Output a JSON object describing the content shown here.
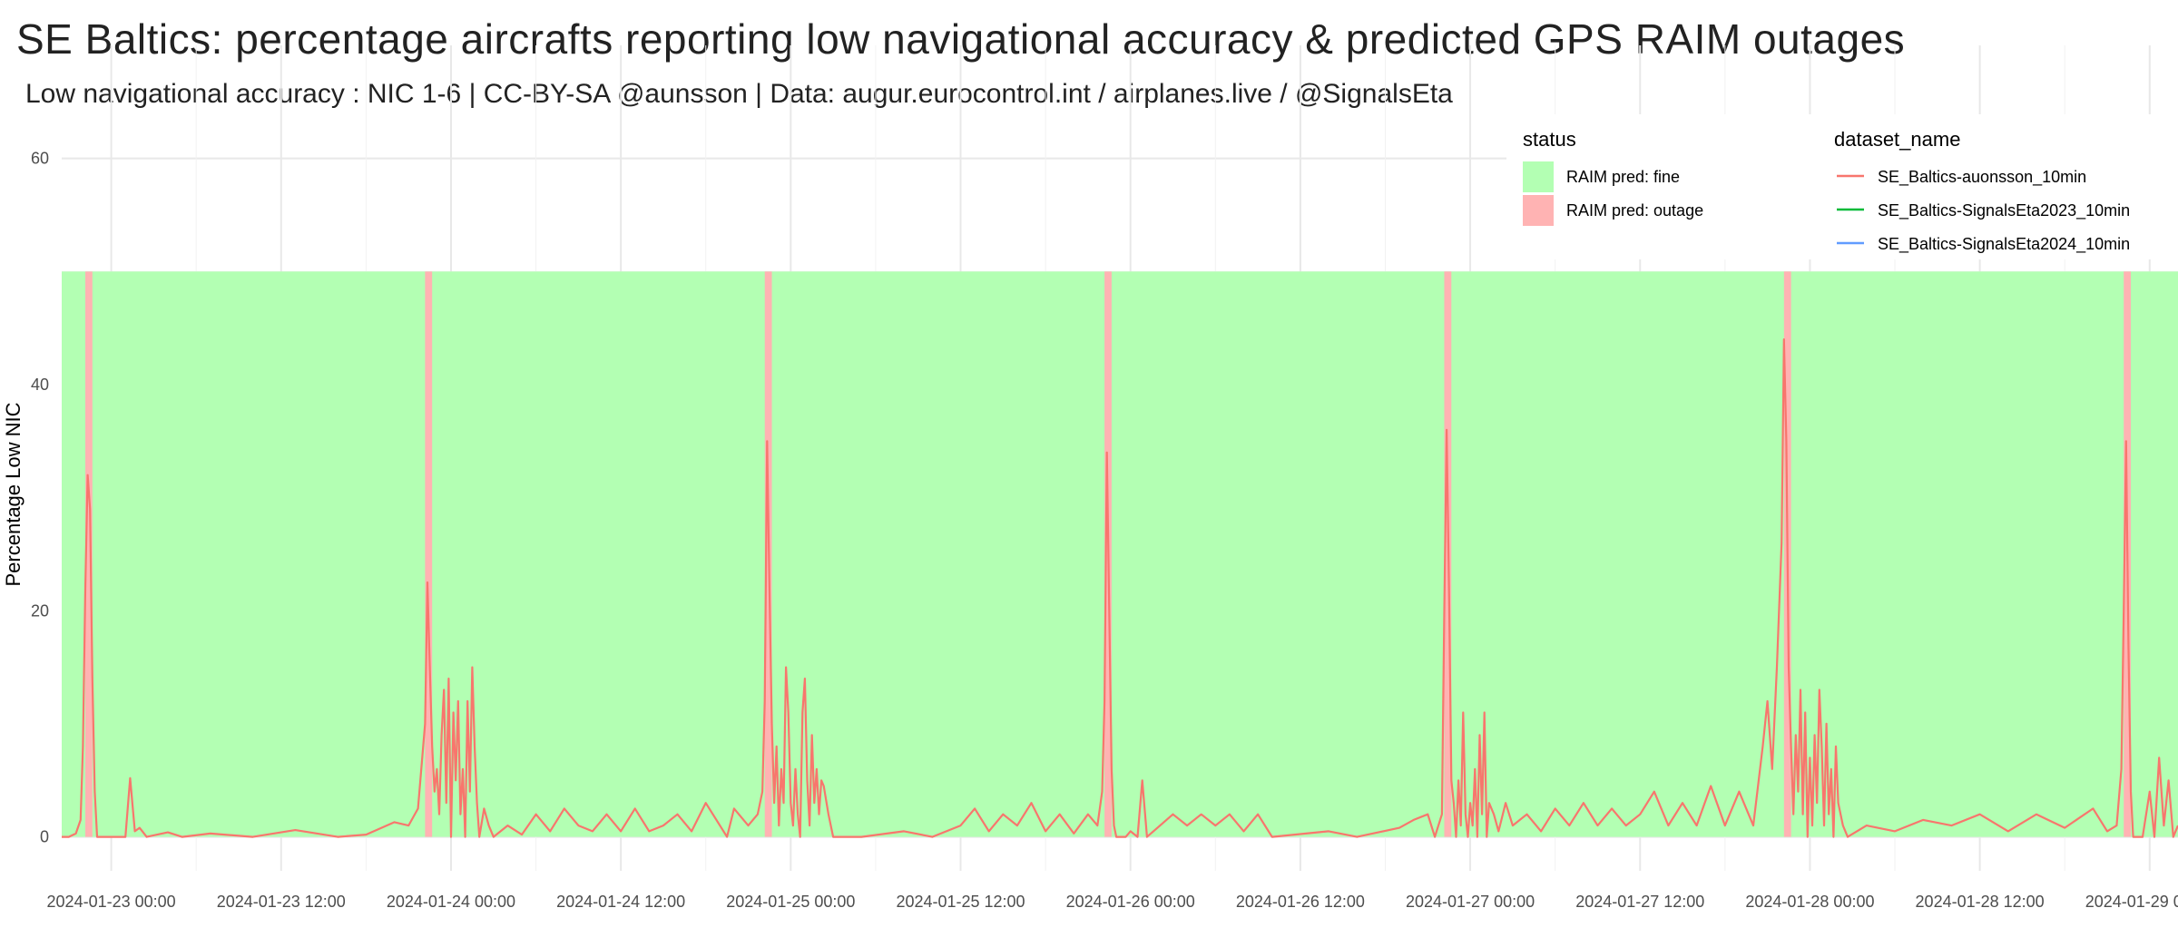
{
  "chart_data": {
    "type": "line",
    "title": "SE Baltics: percentage aircrafts reporting low navigational accuracy & predicted GPS RAIM outages",
    "subtitle": "Low navigational accuracy : NIC 1-6 | CC-BY-SA @aunsson | Data: augur.eurocontrol.int / airplanes.live / @SignalsEta",
    "xlabel": "",
    "ylabel": "Percentage Low NIC",
    "x_range": [
      "2024-01-22 20:30",
      "2024-01-29 02:00"
    ],
    "ylim": [
      -3,
      70
    ],
    "y_ticks": [
      0,
      20,
      40,
      60
    ],
    "x_ticks": [
      "2024-01-23 00:00",
      "2024-01-23 12:00",
      "2024-01-24 00:00",
      "2024-01-24 12:00",
      "2024-01-25 00:00",
      "2024-01-25 12:00",
      "2024-01-26 00:00",
      "2024-01-26 12:00",
      "2024-01-27 00:00",
      "2024-01-27 12:00",
      "2024-01-28 00:00",
      "2024-01-28 12:00",
      "2024-01-29 00:00"
    ],
    "grid": true,
    "status_band": {
      "ymin": 0,
      "ymax": 50,
      "fine_color": "#b3ffb3",
      "outage_color": "#ffb3b3"
    },
    "status_outages": [
      [
        "2024-01-22 22:10",
        "2024-01-22 22:40"
      ],
      [
        "2024-01-23 22:10",
        "2024-01-23 22:40"
      ],
      [
        "2024-01-24 22:10",
        "2024-01-24 22:40"
      ],
      [
        "2024-01-25 22:10",
        "2024-01-25 22:40"
      ],
      [
        "2024-01-26 22:10",
        "2024-01-26 22:40"
      ],
      [
        "2024-01-27 22:10",
        "2024-01-27 22:40"
      ],
      [
        "2024-01-28 22:10",
        "2024-01-28 22:40"
      ]
    ],
    "legend_status": {
      "title": "status",
      "items": [
        {
          "label": "RAIM pred: fine",
          "color": "#b3ffb3"
        },
        {
          "label": "RAIM pred: outage",
          "color": "#ffb3b3"
        }
      ]
    },
    "legend_dataset": {
      "title": "dataset_name",
      "items": [
        {
          "label": "SE_Baltics-auonsson_10min",
          "color": "#f8766d"
        },
        {
          "label": "SE_Baltics-SignalsEta2023_10min",
          "color": "#00ba38"
        },
        {
          "label": "SE_Baltics-SignalsEta2024_10min",
          "color": "#619cff"
        }
      ]
    },
    "legend_position": "top-right",
    "series": [
      {
        "name": "SE_Baltics-auonsson_10min",
        "color": "#f8766d",
        "points": [
          [
            "2024-01-22 20:30",
            0
          ],
          [
            "2024-01-22 21:00",
            0
          ],
          [
            "2024-01-22 21:30",
            0.3
          ],
          [
            "2024-01-22 21:50",
            1.5
          ],
          [
            "2024-01-22 22:00",
            8
          ],
          [
            "2024-01-22 22:10",
            22
          ],
          [
            "2024-01-22 22:20",
            32
          ],
          [
            "2024-01-22 22:30",
            29
          ],
          [
            "2024-01-22 22:40",
            14
          ],
          [
            "2024-01-22 22:50",
            4
          ],
          [
            "2024-01-22 23:00",
            0
          ],
          [
            "2024-01-23 00:00",
            0
          ],
          [
            "2024-01-23 01:00",
            0
          ],
          [
            "2024-01-23 01:20",
            5.2
          ],
          [
            "2024-01-23 01:40",
            0.5
          ],
          [
            "2024-01-23 02:00",
            0.8
          ],
          [
            "2024-01-23 02:30",
            0
          ],
          [
            "2024-01-23 04:00",
            0.4
          ],
          [
            "2024-01-23 05:00",
            0
          ],
          [
            "2024-01-23 07:00",
            0.3
          ],
          [
            "2024-01-23 10:00",
            0
          ],
          [
            "2024-01-23 13:00",
            0.6
          ],
          [
            "2024-01-23 16:00",
            0
          ],
          [
            "2024-01-23 18:00",
            0.2
          ],
          [
            "2024-01-23 20:00",
            1.3
          ],
          [
            "2024-01-23 21:00",
            1
          ],
          [
            "2024-01-23 21:40",
            2.5
          ],
          [
            "2024-01-23 22:10",
            10
          ],
          [
            "2024-01-23 22:20",
            22.5
          ],
          [
            "2024-01-23 22:30",
            15
          ],
          [
            "2024-01-23 22:40",
            8
          ],
          [
            "2024-01-23 22:50",
            4
          ],
          [
            "2024-01-23 23:00",
            6
          ],
          [
            "2024-01-23 23:10",
            2
          ],
          [
            "2024-01-23 23:20",
            9
          ],
          [
            "2024-01-23 23:30",
            13
          ],
          [
            "2024-01-23 23:40",
            3
          ],
          [
            "2024-01-23 23:50",
            14
          ],
          [
            "2024-01-24 00:00",
            0
          ],
          [
            "2024-01-24 00:10",
            11
          ],
          [
            "2024-01-24 00:20",
            5
          ],
          [
            "2024-01-24 00:30",
            12
          ],
          [
            "2024-01-24 00:40",
            2
          ],
          [
            "2024-01-24 00:50",
            6
          ],
          [
            "2024-01-24 01:00",
            0
          ],
          [
            "2024-01-24 01:10",
            12
          ],
          [
            "2024-01-24 01:20",
            4
          ],
          [
            "2024-01-24 01:30",
            15
          ],
          [
            "2024-01-24 01:40",
            8
          ],
          [
            "2024-01-24 01:50",
            3
          ],
          [
            "2024-01-24 02:00",
            0
          ],
          [
            "2024-01-24 02:20",
            2.5
          ],
          [
            "2024-01-24 02:40",
            1
          ],
          [
            "2024-01-24 03:00",
            0
          ],
          [
            "2024-01-24 04:00",
            1
          ],
          [
            "2024-01-24 05:00",
            0.2
          ],
          [
            "2024-01-24 06:00",
            2
          ],
          [
            "2024-01-24 07:00",
            0.5
          ],
          [
            "2024-01-24 08:00",
            2.5
          ],
          [
            "2024-01-24 09:00",
            1
          ],
          [
            "2024-01-24 10:00",
            0.5
          ],
          [
            "2024-01-24 11:00",
            2
          ],
          [
            "2024-01-24 12:00",
            0.5
          ],
          [
            "2024-01-24 13:00",
            2.5
          ],
          [
            "2024-01-24 14:00",
            0.5
          ],
          [
            "2024-01-24 15:00",
            1
          ],
          [
            "2024-01-24 16:00",
            2
          ],
          [
            "2024-01-24 17:00",
            0.5
          ],
          [
            "2024-01-24 18:00",
            3
          ],
          [
            "2024-01-24 19:00",
            1
          ],
          [
            "2024-01-24 19:30",
            0
          ],
          [
            "2024-01-24 20:00",
            2.5
          ],
          [
            "2024-01-24 21:00",
            1
          ],
          [
            "2024-01-24 21:40",
            2
          ],
          [
            "2024-01-24 22:00",
            4
          ],
          [
            "2024-01-24 22:10",
            12
          ],
          [
            "2024-01-24 22:20",
            35
          ],
          [
            "2024-01-24 22:30",
            22
          ],
          [
            "2024-01-24 22:40",
            10
          ],
          [
            "2024-01-24 22:50",
            3
          ],
          [
            "2024-01-24 23:00",
            8
          ],
          [
            "2024-01-24 23:10",
            1
          ],
          [
            "2024-01-24 23:20",
            6
          ],
          [
            "2024-01-24 23:30",
            3
          ],
          [
            "2024-01-24 23:40",
            15
          ],
          [
            "2024-01-24 23:50",
            11
          ],
          [
            "2024-01-25 00:00",
            3
          ],
          [
            "2024-01-25 00:10",
            1
          ],
          [
            "2024-01-25 00:20",
            6
          ],
          [
            "2024-01-25 00:30",
            2
          ],
          [
            "2024-01-25 00:40",
            0
          ],
          [
            "2024-01-25 00:50",
            11
          ],
          [
            "2024-01-25 01:00",
            14
          ],
          [
            "2024-01-25 01:10",
            5
          ],
          [
            "2024-01-25 01:20",
            1
          ],
          [
            "2024-01-25 01:30",
            9
          ],
          [
            "2024-01-25 01:40",
            3
          ],
          [
            "2024-01-25 01:50",
            6
          ],
          [
            "2024-01-25 02:00",
            2
          ],
          [
            "2024-01-25 02:10",
            5
          ],
          [
            "2024-01-25 02:20",
            4.5
          ],
          [
            "2024-01-25 02:40",
            2
          ],
          [
            "2024-01-25 03:00",
            0
          ],
          [
            "2024-01-25 05:00",
            0
          ],
          [
            "2024-01-25 08:00",
            0.5
          ],
          [
            "2024-01-25 10:00",
            0
          ],
          [
            "2024-01-25 12:00",
            1
          ],
          [
            "2024-01-25 13:00",
            2.5
          ],
          [
            "2024-01-25 14:00",
            0.5
          ],
          [
            "2024-01-25 15:00",
            2
          ],
          [
            "2024-01-25 16:00",
            1
          ],
          [
            "2024-01-25 17:00",
            3
          ],
          [
            "2024-01-25 18:00",
            0.5
          ],
          [
            "2024-01-25 19:00",
            2
          ],
          [
            "2024-01-25 20:00",
            0.3
          ],
          [
            "2024-01-25 21:00",
            2
          ],
          [
            "2024-01-25 21:40",
            1
          ],
          [
            "2024-01-25 22:00",
            4
          ],
          [
            "2024-01-25 22:10",
            12
          ],
          [
            "2024-01-25 22:20",
            34
          ],
          [
            "2024-01-25 22:30",
            20
          ],
          [
            "2024-01-25 22:40",
            6
          ],
          [
            "2024-01-25 22:50",
            1
          ],
          [
            "2024-01-25 23:00",
            0
          ],
          [
            "2024-01-25 23:40",
            0
          ],
          [
            "2024-01-26 00:00",
            0.5
          ],
          [
            "2024-01-26 00:30",
            0
          ],
          [
            "2024-01-26 00:50",
            5
          ],
          [
            "2024-01-26 01:10",
            0
          ],
          [
            "2024-01-26 03:00",
            2
          ],
          [
            "2024-01-26 04:00",
            1
          ],
          [
            "2024-01-26 05:00",
            2
          ],
          [
            "2024-01-26 06:00",
            1
          ],
          [
            "2024-01-26 07:00",
            2
          ],
          [
            "2024-01-26 08:00",
            0.5
          ],
          [
            "2024-01-26 09:00",
            2
          ],
          [
            "2024-01-26 10:00",
            0
          ],
          [
            "2024-01-26 14:00",
            0.5
          ],
          [
            "2024-01-26 16:00",
            0
          ],
          [
            "2024-01-26 19:00",
            0.8
          ],
          [
            "2024-01-26 20:00",
            1.5
          ],
          [
            "2024-01-26 21:00",
            2
          ],
          [
            "2024-01-26 21:30",
            0
          ],
          [
            "2024-01-26 22:00",
            2
          ],
          [
            "2024-01-26 22:10",
            20
          ],
          [
            "2024-01-26 22:20",
            36
          ],
          [
            "2024-01-26 22:30",
            22
          ],
          [
            "2024-01-26 22:40",
            5
          ],
          [
            "2024-01-26 22:50",
            3
          ],
          [
            "2024-01-26 23:00",
            0
          ],
          [
            "2024-01-26 23:10",
            5
          ],
          [
            "2024-01-26 23:20",
            1
          ],
          [
            "2024-01-26 23:30",
            11
          ],
          [
            "2024-01-26 23:40",
            2
          ],
          [
            "2024-01-26 23:50",
            0
          ],
          [
            "2024-01-27 00:00",
            3
          ],
          [
            "2024-01-27 00:10",
            1
          ],
          [
            "2024-01-27 00:20",
            6
          ],
          [
            "2024-01-27 00:30",
            0
          ],
          [
            "2024-01-27 00:40",
            9
          ],
          [
            "2024-01-27 00:50",
            2
          ],
          [
            "2024-01-27 01:00",
            11
          ],
          [
            "2024-01-27 01:10",
            0
          ],
          [
            "2024-01-27 01:20",
            3
          ],
          [
            "2024-01-27 01:40",
            2
          ],
          [
            "2024-01-27 02:00",
            0.5
          ],
          [
            "2024-01-27 02:30",
            3
          ],
          [
            "2024-01-27 03:00",
            1
          ],
          [
            "2024-01-27 04:00",
            2
          ],
          [
            "2024-01-27 05:00",
            0.5
          ],
          [
            "2024-01-27 06:00",
            2.5
          ],
          [
            "2024-01-27 07:00",
            1
          ],
          [
            "2024-01-27 08:00",
            3
          ],
          [
            "2024-01-27 09:00",
            1
          ],
          [
            "2024-01-27 10:00",
            2.5
          ],
          [
            "2024-01-27 11:00",
            1
          ],
          [
            "2024-01-27 12:00",
            2
          ],
          [
            "2024-01-27 13:00",
            4
          ],
          [
            "2024-01-27 14:00",
            1
          ],
          [
            "2024-01-27 15:00",
            3
          ],
          [
            "2024-01-27 16:00",
            1
          ],
          [
            "2024-01-27 17:00",
            4.5
          ],
          [
            "2024-01-27 18:00",
            1
          ],
          [
            "2024-01-27 19:00",
            4
          ],
          [
            "2024-01-27 20:00",
            1
          ],
          [
            "2024-01-27 20:40",
            8
          ],
          [
            "2024-01-27 21:00",
            12
          ],
          [
            "2024-01-27 21:20",
            6
          ],
          [
            "2024-01-27 21:40",
            15
          ],
          [
            "2024-01-27 22:00",
            26
          ],
          [
            "2024-01-27 22:10",
            44
          ],
          [
            "2024-01-27 22:20",
            35
          ],
          [
            "2024-01-27 22:30",
            15
          ],
          [
            "2024-01-27 22:40",
            8
          ],
          [
            "2024-01-27 22:50",
            2
          ],
          [
            "2024-01-27 23:00",
            9
          ],
          [
            "2024-01-27 23:10",
            4
          ],
          [
            "2024-01-27 23:20",
            13
          ],
          [
            "2024-01-27 23:30",
            2
          ],
          [
            "2024-01-27 23:40",
            11
          ],
          [
            "2024-01-27 23:50",
            0
          ],
          [
            "2024-01-28 00:00",
            7
          ],
          [
            "2024-01-28 00:10",
            1
          ],
          [
            "2024-01-28 00:20",
            9
          ],
          [
            "2024-01-28 00:30",
            3
          ],
          [
            "2024-01-28 00:40",
            13
          ],
          [
            "2024-01-28 00:50",
            8
          ],
          [
            "2024-01-28 01:00",
            1
          ],
          [
            "2024-01-28 01:10",
            10
          ],
          [
            "2024-01-28 01:20",
            2
          ],
          [
            "2024-01-28 01:30",
            6
          ],
          [
            "2024-01-28 01:40",
            0
          ],
          [
            "2024-01-28 01:50",
            8
          ],
          [
            "2024-01-28 02:00",
            3
          ],
          [
            "2024-01-28 02:20",
            1
          ],
          [
            "2024-01-28 02:40",
            0
          ],
          [
            "2024-01-28 04:00",
            1
          ],
          [
            "2024-01-28 06:00",
            0.5
          ],
          [
            "2024-01-28 08:00",
            1.5
          ],
          [
            "2024-01-28 10:00",
            1
          ],
          [
            "2024-01-28 12:00",
            2
          ],
          [
            "2024-01-28 14:00",
            0.5
          ],
          [
            "2024-01-28 16:00",
            2
          ],
          [
            "2024-01-28 18:00",
            0.8
          ],
          [
            "2024-01-28 20:00",
            2.5
          ],
          [
            "2024-01-28 21:00",
            0.5
          ],
          [
            "2024-01-28 21:40",
            1
          ],
          [
            "2024-01-28 22:00",
            6
          ],
          [
            "2024-01-28 22:10",
            20
          ],
          [
            "2024-01-28 22:20",
            35
          ],
          [
            "2024-01-28 22:30",
            17
          ],
          [
            "2024-01-28 22:40",
            4
          ],
          [
            "2024-01-28 22:50",
            0
          ],
          [
            "2024-01-28 23:30",
            0
          ],
          [
            "2024-01-29 00:00",
            4
          ],
          [
            "2024-01-29 00:20",
            0
          ],
          [
            "2024-01-29 00:40",
            7
          ],
          [
            "2024-01-29 01:00",
            1
          ],
          [
            "2024-01-29 01:20",
            5
          ],
          [
            "2024-01-29 01:40",
            0
          ],
          [
            "2024-01-29 02:00",
            1
          ]
        ]
      }
    ]
  }
}
